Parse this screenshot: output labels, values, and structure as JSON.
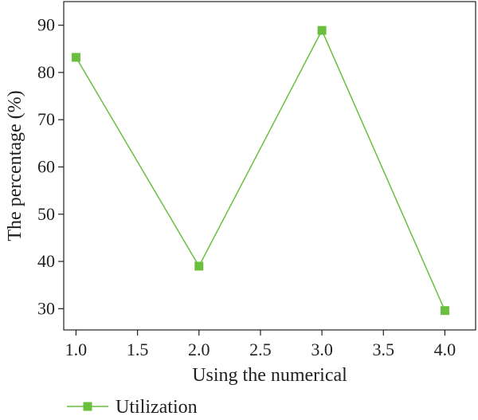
{
  "chart_data": {
    "type": "line",
    "title": "",
    "xlabel": "Using the numerical",
    "ylabel": "The percentage (%)",
    "xlim": [
      0.9,
      4.25
    ],
    "ylim": [
      25.5,
      95
    ],
    "x_ticks": [
      "1.0",
      "1.5",
      "2.0",
      "2.5",
      "3.0",
      "3.5",
      "4.0"
    ],
    "y_ticks": [
      "30",
      "40",
      "50",
      "60",
      "70",
      "80",
      "90"
    ],
    "series": [
      {
        "name": "Utilization",
        "color": "#6abf3f",
        "marker": "square",
        "x": [
          1.0,
          2.0,
          3.0,
          4.0
        ],
        "y": [
          83.2,
          39.0,
          88.9,
          29.6
        ]
      }
    ],
    "legend_position": "bottom-left",
    "grid": false
  }
}
